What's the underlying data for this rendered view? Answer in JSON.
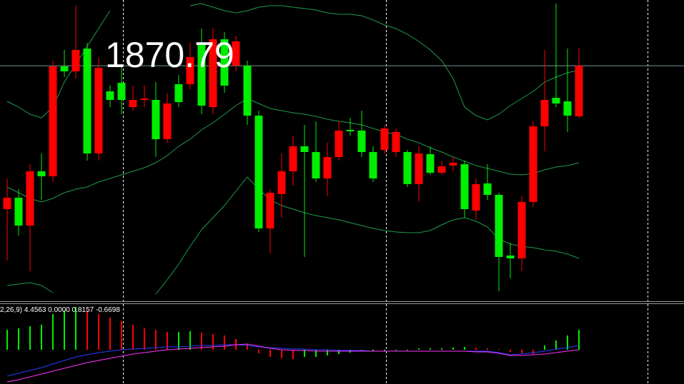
{
  "chart_data": [
    {
      "type": "candlestick",
      "open": [
        1850.7,
        1852.3,
        1848.4,
        1856.0,
        1855.3,
        1870.7,
        1870.0,
        1873.2,
        1858.5,
        1867.2,
        1868.4,
        1865.0,
        1866.0,
        1866.0,
        1860.5,
        1868.2,
        1868.2,
        1874.0,
        1865.0,
        1874.5,
        1870.8,
        1870.8,
        1863.8,
        1848.0,
        1852.8,
        1856.0,
        1859.5,
        1858.7,
        1855.0,
        1858.0,
        1861.8,
        1861.7,
        1858.7,
        1859.0,
        1858.7,
        1858.7,
        1854.2,
        1858.4,
        1855.8,
        1856.8,
        1857.0,
        1850.5,
        1854.3,
        1852.7,
        1844.2,
        1843.8,
        1851.7,
        1862.3,
        1866.3,
        1865.8,
        1863.7
      ],
      "high": [
        1855.0,
        1853.5,
        1857.0,
        1858.5,
        1871.5,
        1873.0,
        1879.2,
        1874.0,
        1872.0,
        1868.0,
        1871.0,
        1868.0,
        1868.0,
        1868.5,
        1867.0,
        1869.5,
        1874.0,
        1876.0,
        1876.0,
        1875.5,
        1875.0,
        1871.5,
        1864.5,
        1853.5,
        1858.5,
        1861.0,
        1862.5,
        1863.0,
        1860.0,
        1863.0,
        1863.5,
        1864.5,
        1859.5,
        1862.5,
        1862.0,
        1859.0,
        1859.5,
        1859.5,
        1857.5,
        1858.0,
        1857.5,
        1855.0,
        1857.0,
        1853.0,
        1846.0,
        1852.5,
        1863.0,
        1873.0,
        1879.5,
        1873.2,
        1873.2
      ],
      "low": [
        1843.5,
        1847.0,
        1842.0,
        1852.0,
        1854.5,
        1869.2,
        1869.0,
        1857.5,
        1857.5,
        1865.0,
        1864.0,
        1864.5,
        1865.0,
        1858.0,
        1860.0,
        1865.0,
        1867.5,
        1864.0,
        1864.0,
        1867.0,
        1870.0,
        1862.5,
        1847.5,
        1844.5,
        1849.5,
        1854.0,
        1844.0,
        1854.5,
        1852.5,
        1857.5,
        1861.0,
        1858.0,
        1854.5,
        1858.5,
        1858.0,
        1853.8,
        1851.8,
        1855.5,
        1855.5,
        1856.0,
        1849.5,
        1849.2,
        1852.0,
        1839.2,
        1841.0,
        1842.0,
        1851.0,
        1858.8,
        1865.0,
        1861.5,
        1863.5
      ],
      "close": [
        1852.3,
        1848.4,
        1856.0,
        1855.3,
        1870.7,
        1870.0,
        1873.0,
        1858.5,
        1870.5,
        1866.0,
        1866.0,
        1866.0,
        1866.2,
        1860.5,
        1865.5,
        1865.7,
        1872.0,
        1865.2,
        1874.5,
        1868.0,
        1874.2,
        1863.8,
        1848.0,
        1853.0,
        1856.0,
        1859.5,
        1858.7,
        1855.0,
        1858.0,
        1861.7,
        1861.6,
        1858.7,
        1855.0,
        1862.0,
        1861.5,
        1854.2,
        1858.5,
        1855.8,
        1856.7,
        1857.2,
        1850.7,
        1854.2,
        1852.7,
        1844.0,
        1843.8,
        1851.7,
        1862.3,
        1866.0,
        1865.5,
        1863.8,
        1870.79
      ],
      "up_color": "#ff0000",
      "down_color": "#00ee00",
      "series": [
        {
          "color": "#1f9a4a",
          "values": [
            1865.8,
            1865.0,
            1864.0,
            1863.5,
            1865.0,
            1868.5,
            1871.0,
            1873.5,
            1876.0,
            1878.5,
            null,
            null,
            null,
            null,
            null,
            null,
            1879.2,
            1879.5,
            1879.0,
            1878.5,
            1878.2,
            1878.5,
            1879.0,
            1879.2,
            1879.2,
            1879.0,
            1878.8,
            1878.6,
            1878.2,
            1878.0,
            1878.0,
            1877.8,
            1877.2,
            1876.5,
            1876.0,
            1875.2,
            1874.2,
            1873.0,
            1871.5,
            1869.0,
            1865.0,
            1863.8,
            1863.2,
            1864.0,
            1865.2,
            1866.2,
            1867.2,
            1868.5,
            1869.2,
            1869.8,
            1870.2
          ]
        },
        {
          "color": "#1f9a4a",
          "values": [
            1853.8,
            1853.0,
            1852.2,
            1851.7,
            1852.2,
            1853.0,
            1853.5,
            1853.8,
            1854.5,
            1855.0,
            1855.5,
            1856.0,
            1856.5,
            1857.2,
            1858.2,
            1859.5,
            1860.5,
            1861.8,
            1862.8,
            1864.0,
            1865.2,
            1866.2,
            1865.5,
            1864.8,
            1864.5,
            1864.2,
            1864.0,
            1863.7,
            1863.3,
            1863.0,
            1862.8,
            1862.5,
            1862.0,
            1861.5,
            1861.2,
            1860.5,
            1860.0,
            1859.3,
            1858.7,
            1858.0,
            1857.4,
            1856.8,
            1856.4,
            1856.0,
            1855.6,
            1855.5,
            1855.7,
            1856.2,
            1856.6,
            1856.8,
            1857.2
          ]
        },
        {
          "color": "#1f9a4a",
          "values": [
            1840.0,
            1840.2,
            1840.4,
            1840.0,
            1839.0,
            null,
            null,
            null,
            null,
            null,
            null,
            null,
            null,
            1838.8,
            1840.8,
            1843.0,
            1845.5,
            1847.8,
            1849.5,
            1851.2,
            1853.2,
            1855.2,
            1853.5,
            1852.0,
            1851.2,
            1850.7,
            1850.2,
            1849.8,
            1849.5,
            1849.2,
            1848.8,
            1848.4,
            1848.0,
            1847.7,
            1847.5,
            1847.4,
            1847.4,
            1847.7,
            1848.5,
            1849.2,
            1849.5,
            1849.0,
            1848.2,
            1846.5,
            1845.8,
            1845.5,
            1845.3,
            1845.0,
            1844.8,
            1844.4,
            1843.8
          ]
        }
      ],
      "current_price": 1870.79,
      "price_line_color": "#6f9393",
      "ylim": [
        1838,
        1880
      ]
    },
    {
      "type": "macd",
      "label": "2,26,9) 4.4563 0.0000 0.8157 -0.6698",
      "values": [
        2.8,
        3.0,
        3.3,
        3.5,
        5.0,
        5.5,
        6.0,
        5.5,
        5.0,
        4.5,
        4.0,
        3.5,
        3.0,
        2.8,
        2.5,
        2.5,
        2.6,
        2.4,
        2.2,
        2.0,
        1.5,
        0.8,
        -0.5,
        -1.0,
        -1.2,
        -1.3,
        -1.0,
        -1.0,
        -0.8,
        -0.6,
        -0.4,
        -0.2,
        -0.2,
        -0.2,
        -0.1,
        -0.1,
        0.2,
        0.2,
        0.2,
        0.3,
        0.4,
        0.3,
        0.2,
        0.1,
        -0.3,
        -0.5,
        -0.6,
        0.6,
        1.3,
        2.0,
        2.8
      ],
      "up_color": "#00ee00",
      "down_color": "#ff0000",
      "series": [
        {
          "color": "#2a3cff",
          "values": [
            -3.7,
            -3.3,
            -2.9,
            -2.5,
            -2.0,
            -1.5,
            -1.0,
            -0.7,
            -0.4,
            -0.2,
            0.0,
            0.1,
            0.2,
            0.3,
            0.4,
            0.4,
            0.5,
            0.6,
            0.6,
            0.7,
            0.7,
            0.6,
            0.4,
            0.3,
            0.2,
            0.1,
            0.1,
            0.0,
            0.0,
            -0.1,
            -0.1,
            -0.1,
            -0.2,
            -0.2,
            -0.2,
            -0.2,
            -0.2,
            -0.2,
            -0.2,
            -0.2,
            -0.2,
            -0.2,
            -0.2,
            -0.4,
            -0.7,
            -0.6,
            -0.4,
            -0.2,
            0.1,
            0.3,
            0.6
          ]
        },
        {
          "color": "#ff33ff",
          "values": [
            -4.5,
            -4.2,
            -3.8,
            -3.4,
            -3.0,
            -2.6,
            -2.2,
            -1.8,
            -1.5,
            -1.2,
            -0.9,
            -0.6,
            -0.4,
            -0.2,
            0.0,
            0.1,
            0.2,
            0.3,
            0.4,
            0.5,
            0.7,
            0.8,
            0.5,
            0.2,
            0.0,
            -0.1,
            -0.1,
            -0.2,
            -0.2,
            -0.2,
            -0.2,
            -0.2,
            -0.2,
            -0.2,
            -0.2,
            -0.2,
            -0.2,
            -0.2,
            -0.2,
            -0.2,
            -0.2,
            -0.3,
            -0.3,
            -0.5,
            -0.8,
            -0.8,
            -0.7,
            -0.6,
            -0.4,
            -0.2,
            0.0
          ]
        }
      ],
      "ylim": [
        -4.8,
        6.3
      ]
    }
  ]
}
